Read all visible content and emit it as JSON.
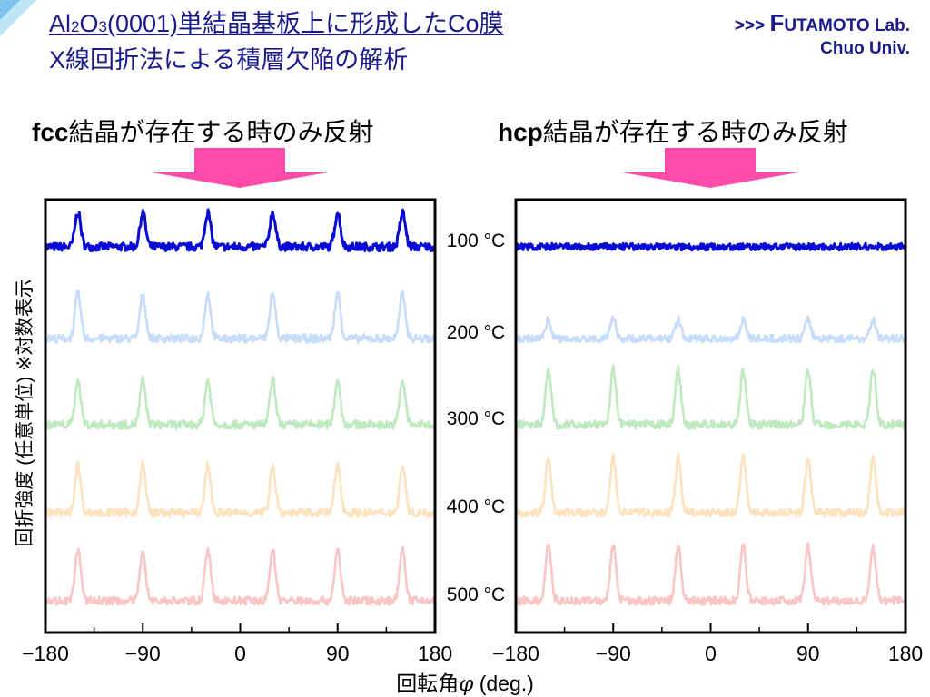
{
  "header": {
    "title_line1_parts": [
      "Al",
      "2",
      "O",
      "3",
      "(0001)単結晶基板上に形成したCo膜"
    ],
    "title_line2": "X線回折法による積層欠陥の解析",
    "lab_prefix": ">>> ",
    "lab_initial": "F",
    "lab_rest": "UTAMOTO Lab.",
    "lab_university": "Chuo Univ."
  },
  "panel_headings": {
    "left_bold": "fcc",
    "left_rest": "結晶が存在する時のみ反射",
    "right_bold": "hcp",
    "right_rest": "結晶が存在する時のみ反射"
  },
  "colors": {
    "title": "#1a1a8c",
    "arrow": "#ff2d9b",
    "axis": "#000000"
  },
  "chart_data": {
    "type": "line",
    "xlabel_prefix": "回転角",
    "xlabel_symbol": "φ",
    "xlabel_suffix": " (deg.)",
    "ylabel": "回折強度 (任意単位) ※対数表示",
    "xlim": [
      -180,
      180
    ],
    "x_tick_labels": [
      "−180",
      "−90",
      "0",
      "90",
      "180"
    ],
    "x_ticks": [
      -180,
      -90,
      0,
      90,
      180
    ],
    "temperatures": [
      "100 °C",
      "200 °C",
      "300 °C",
      "400 °C",
      "500 °C"
    ],
    "series_colors": [
      "#0a0ad6",
      "#c6dcf8",
      "#bfe9bf",
      "#fbe3c0",
      "#f9c6c6"
    ],
    "panels": [
      {
        "name": "fcc",
        "peak_positions": [
          -150,
          -90,
          -30,
          30,
          90,
          150
        ],
        "peak_heights": [
          1.0,
          1.3,
          1.3,
          1.4,
          1.5
        ],
        "noise": [
          0.12,
          0.12,
          0.12,
          0.12,
          0.12
        ]
      },
      {
        "name": "hcp",
        "peak_positions": [
          -150,
          -90,
          -30,
          30,
          90,
          150
        ],
        "peak_heights": [
          0.0,
          0.55,
          1.6,
          1.6,
          1.6
        ],
        "noise": [
          0.1,
          0.11,
          0.12,
          0.12,
          0.12
        ]
      }
    ]
  }
}
